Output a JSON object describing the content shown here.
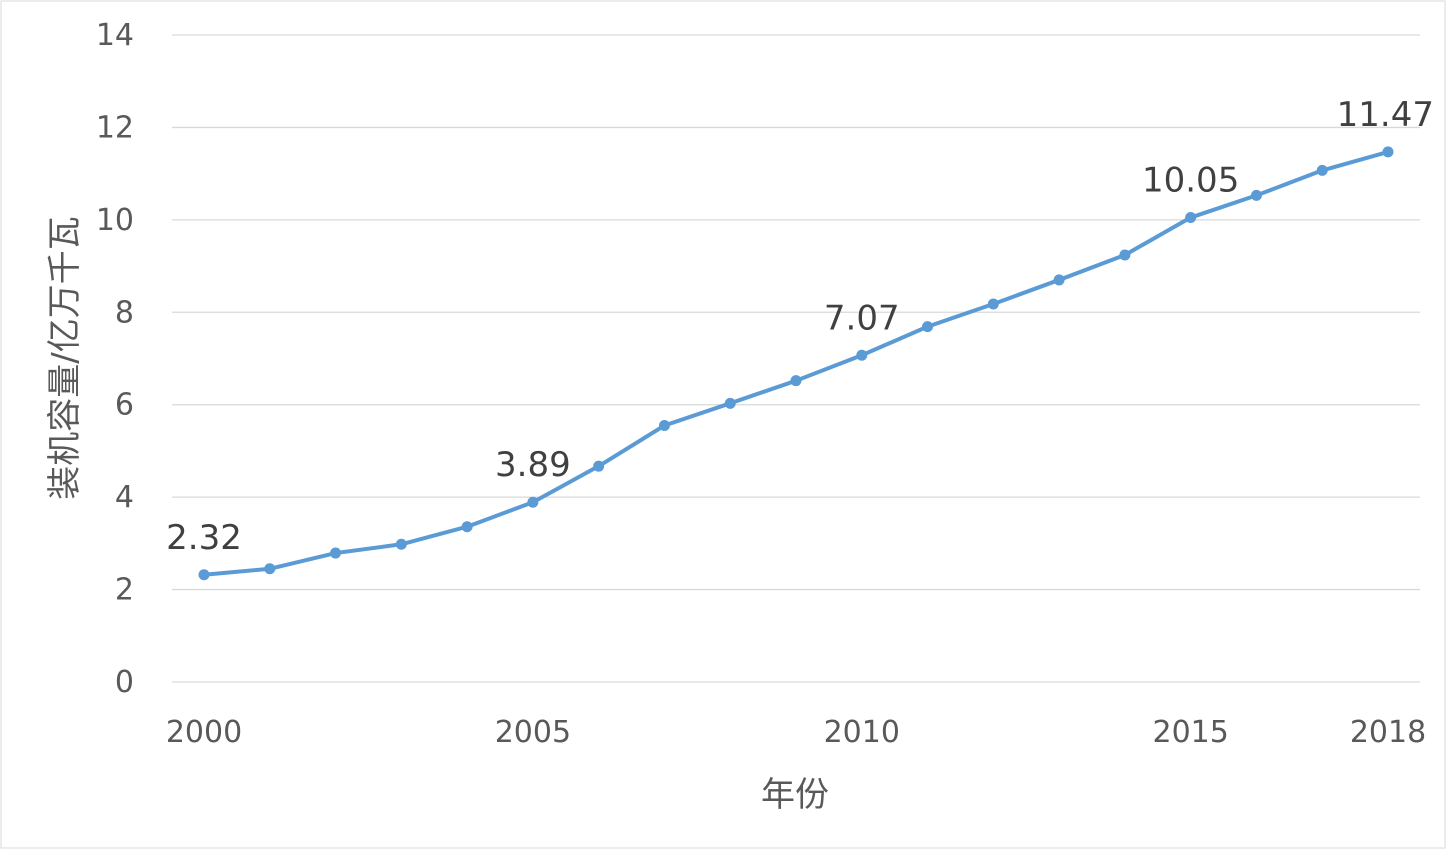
{
  "chart_data": {
    "type": "line",
    "title": "",
    "xlabel": "年份",
    "ylabel": "装机容量/亿万千瓦",
    "x": [
      2000,
      2001,
      2002,
      2003,
      2004,
      2005,
      2006,
      2007,
      2008,
      2009,
      2010,
      2011,
      2012,
      2013,
      2014,
      2015,
      2016,
      2017,
      2018
    ],
    "series": [
      {
        "values": [
          2.32,
          2.45,
          2.79,
          2.98,
          3.36,
          3.89,
          4.67,
          5.55,
          6.03,
          6.52,
          7.07,
          7.69,
          8.18,
          8.7,
          9.24,
          10.05,
          10.53,
          11.07,
          11.47
        ],
        "color": "#5B9BD5"
      }
    ],
    "data_labels": [
      {
        "x": 2000,
        "text": "2.32"
      },
      {
        "x": 2005,
        "text": "3.89"
      },
      {
        "x": 2010,
        "text": "7.07"
      },
      {
        "x": 2015,
        "text": "10.05"
      },
      {
        "x": 2018,
        "text": "11.47"
      }
    ],
    "x_ticks": [
      "2000",
      "2005",
      "2010",
      "2015",
      "2018"
    ],
    "y_ticks": [
      "0",
      "2",
      "4",
      "6",
      "8",
      "10",
      "12",
      "14"
    ],
    "ylim": [
      0,
      14
    ],
    "xlim": [
      2000,
      2018
    ],
    "grid": true,
    "legend": "none"
  }
}
